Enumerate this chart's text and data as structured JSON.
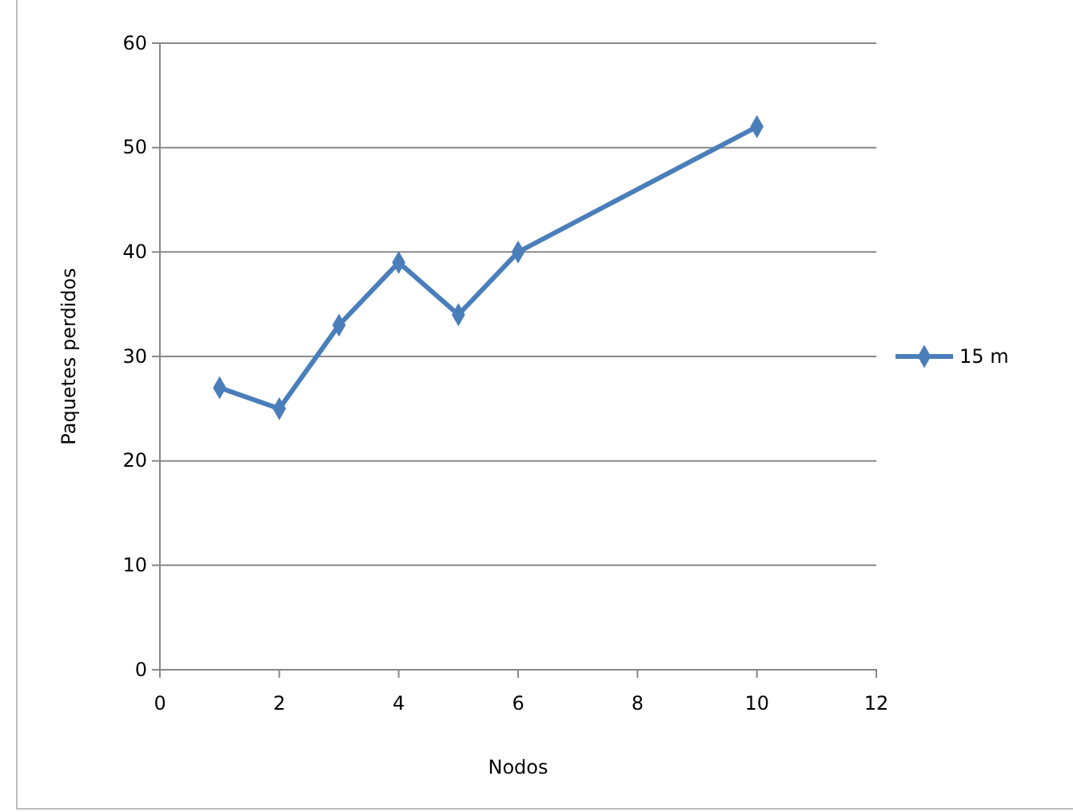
{
  "chart_data": {
    "type": "line",
    "xlabel": "Nodos",
    "ylabel": "Paquetes perdidos",
    "x": [
      1,
      2,
      3,
      4,
      5,
      6,
      10
    ],
    "series": [
      {
        "name": "15 m",
        "color": "#4a7ebb",
        "values": [
          27,
          25,
          33,
          39,
          34,
          40,
          52
        ]
      }
    ],
    "xlim": [
      0,
      12
    ],
    "xticks": [
      0,
      2,
      4,
      6,
      8,
      10,
      12
    ],
    "ylim": [
      0,
      60
    ],
    "yticks": [
      0,
      10,
      20,
      30,
      40,
      50,
      60
    ],
    "grid": "y",
    "legend": "right",
    "marker": "diamond",
    "line_style": "solid"
  }
}
